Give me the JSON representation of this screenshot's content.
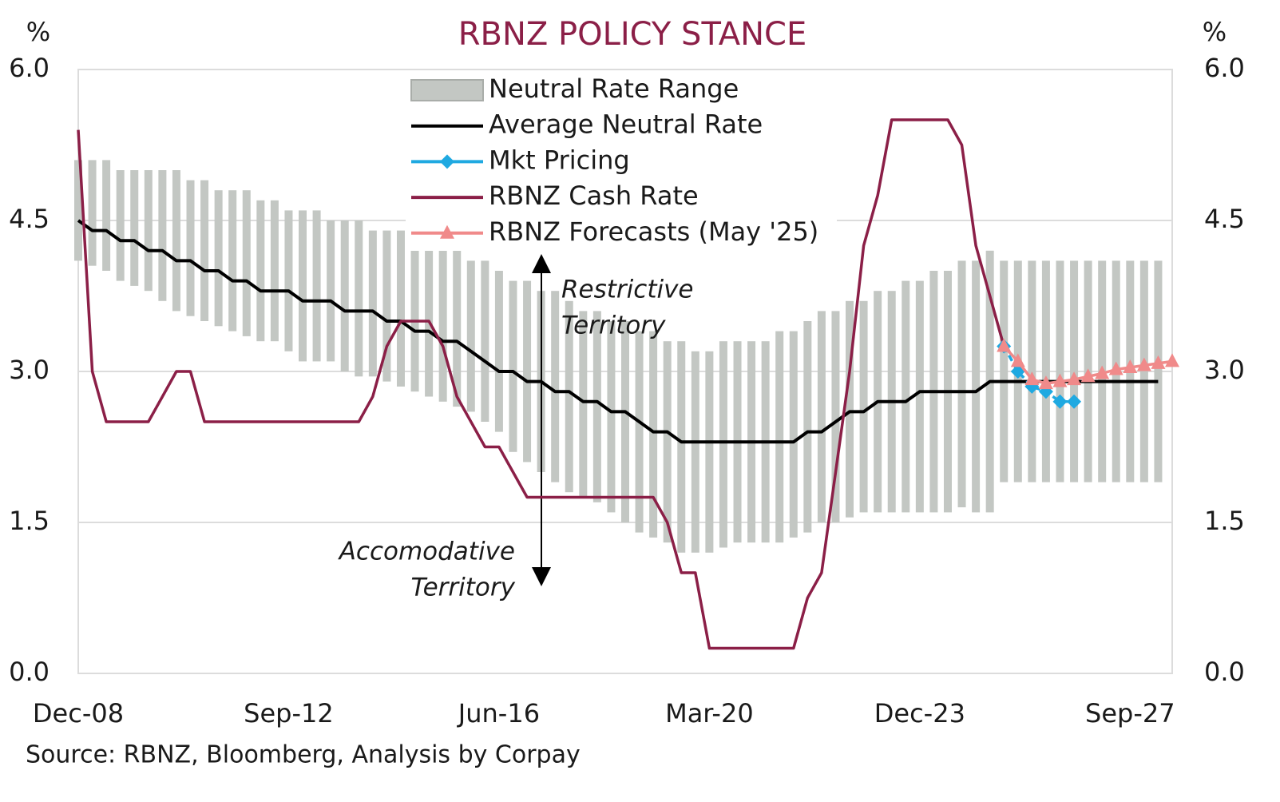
{
  "chart_data": {
    "type": "line",
    "title": "RBNZ POLICY STANCE",
    "y_label": "%",
    "y2_label": "%",
    "source": "Source: RBNZ, Bloomberg, Analysis by Corpay",
    "annotations": [
      {
        "lines": [
          "Restrictive",
          "Territory"
        ]
      },
      {
        "lines": [
          "Accomodative",
          "Territory"
        ]
      }
    ],
    "categories": [
      "Dec-08",
      null,
      null,
      null,
      null,
      null,
      null,
      null,
      null,
      null,
      null,
      null,
      null,
      null,
      null,
      "Sep-12",
      null,
      null,
      null,
      null,
      null,
      null,
      null,
      null,
      null,
      null,
      null,
      null,
      null,
      null,
      "Jun-16",
      null,
      null,
      null,
      null,
      null,
      null,
      null,
      null,
      null,
      null,
      null,
      null,
      null,
      null,
      "Mar-20",
      null,
      null,
      null,
      null,
      null,
      null,
      null,
      null,
      null,
      null,
      null,
      null,
      null,
      null,
      "Dec-23",
      null,
      null,
      null,
      null,
      null,
      null,
      null,
      null,
      null,
      null,
      null,
      null,
      null,
      null,
      "Sep-27",
      null,
      null,
      null
    ],
    "ylim": [
      0,
      6
    ],
    "yticks": [
      {
        "value": 0,
        "label": "0.0"
      },
      {
        "value": 1.5,
        "label": "1.5"
      },
      {
        "value": 3,
        "label": "3.0"
      },
      {
        "value": 4.5,
        "label": "4.5"
      },
      {
        "value": 6,
        "label": "6.0"
      }
    ],
    "y2lim": [
      0,
      6
    ],
    "y2ticks": [
      {
        "value": 0,
        "label": "0.0"
      },
      {
        "value": 1.5,
        "label": "1.5"
      },
      {
        "value": 3,
        "label": "3.0"
      },
      {
        "value": 4.5,
        "label": "4.5"
      },
      {
        "value": 6,
        "label": "6.0"
      }
    ],
    "grid": true,
    "range": {
      "name": "Neutral Rate Range",
      "color": "#c3c7c3",
      "low": [
        4.1,
        4.05,
        4.0,
        3.9,
        3.85,
        3.8,
        3.7,
        3.6,
        3.55,
        3.5,
        3.45,
        3.4,
        3.35,
        3.3,
        3.3,
        3.2,
        3.1,
        3.1,
        3.1,
        3.0,
        2.95,
        2.95,
        2.9,
        2.85,
        2.8,
        2.75,
        2.7,
        2.65,
        2.6,
        2.5,
        2.4,
        2.2,
        2.1,
        2.0,
        1.9,
        1.8,
        1.75,
        1.7,
        1.6,
        1.5,
        1.4,
        1.35,
        1.3,
        1.2,
        1.2,
        1.2,
        1.25,
        1.3,
        1.3,
        1.3,
        1.3,
        1.35,
        1.4,
        1.5,
        1.5,
        1.55,
        1.6,
        1.6,
        1.6,
        1.6,
        1.6,
        1.6,
        1.6,
        1.65,
        1.6,
        1.6,
        1.9,
        1.9,
        1.9,
        1.9,
        1.9,
        1.9,
        1.9,
        1.9,
        1.9,
        1.9,
        1.9,
        1.9,
        null
      ],
      "high": [
        5.1,
        5.1,
        5.1,
        5.0,
        5.0,
        5.0,
        5.0,
        5.0,
        4.9,
        4.9,
        4.8,
        4.8,
        4.8,
        4.7,
        4.7,
        4.6,
        4.6,
        4.6,
        4.5,
        4.5,
        4.5,
        4.4,
        4.4,
        4.4,
        4.3,
        4.3,
        4.2,
        4.2,
        4.1,
        4.1,
        4.0,
        3.9,
        3.9,
        3.8,
        3.8,
        3.7,
        3.6,
        3.6,
        3.5,
        3.5,
        3.4,
        3.4,
        3.3,
        3.3,
        3.2,
        3.2,
        3.3,
        3.3,
        3.3,
        3.3,
        3.4,
        3.4,
        3.5,
        3.6,
        3.6,
        3.7,
        3.7,
        3.8,
        3.8,
        3.9,
        3.9,
        4.0,
        4.0,
        4.1,
        4.1,
        4.2,
        4.1,
        4.1,
        4.1,
        4.1,
        4.1,
        4.1,
        4.1,
        4.1,
        4.1,
        4.1,
        4.1,
        4.1,
        null
      ]
    },
    "series": [
      {
        "name": "Average Neutral Rate",
        "color": "#000000",
        "marker": "none",
        "values": [
          4.5,
          4.4,
          4.4,
          4.3,
          4.3,
          4.2,
          4.2,
          4.1,
          4.1,
          4.0,
          4.0,
          3.9,
          3.9,
          3.8,
          3.8,
          3.8,
          3.7,
          3.7,
          3.7,
          3.6,
          3.6,
          3.6,
          3.5,
          3.5,
          3.4,
          3.4,
          3.3,
          3.3,
          3.2,
          3.1,
          3.0,
          3.0,
          2.9,
          2.9,
          2.8,
          2.8,
          2.7,
          2.7,
          2.6,
          2.6,
          2.5,
          2.4,
          2.4,
          2.3,
          2.3,
          2.3,
          2.3,
          2.3,
          2.3,
          2.3,
          2.3,
          2.3,
          2.4,
          2.4,
          2.5,
          2.6,
          2.6,
          2.7,
          2.7,
          2.7,
          2.8,
          2.8,
          2.8,
          2.8,
          2.8,
          2.9,
          2.9,
          2.9,
          2.9,
          2.9,
          2.9,
          2.9,
          2.9,
          2.9,
          2.9,
          2.9,
          2.9,
          2.9,
          null
        ]
      },
      {
        "name": "Mkt Pricing",
        "color": "#1fa9e1",
        "marker": "diamond",
        "values": [
          null,
          null,
          null,
          null,
          null,
          null,
          null,
          null,
          null,
          null,
          null,
          null,
          null,
          null,
          null,
          null,
          null,
          null,
          null,
          null,
          null,
          null,
          null,
          null,
          null,
          null,
          null,
          null,
          null,
          null,
          null,
          null,
          null,
          null,
          null,
          null,
          null,
          null,
          null,
          null,
          null,
          null,
          null,
          null,
          null,
          null,
          null,
          null,
          null,
          null,
          null,
          null,
          null,
          null,
          null,
          null,
          null,
          null,
          null,
          null,
          null,
          null,
          null,
          null,
          null,
          null,
          3.25,
          3.0,
          2.85,
          2.8,
          2.7,
          2.7,
          null,
          null,
          null,
          null,
          null,
          null,
          null
        ]
      },
      {
        "name": "RBNZ Cash Rate",
        "color": "#8b1f47",
        "marker": "none",
        "values": [
          5.4,
          3.0,
          2.5,
          2.5,
          2.5,
          2.5,
          2.75,
          3.0,
          3.0,
          2.5,
          2.5,
          2.5,
          2.5,
          2.5,
          2.5,
          2.5,
          2.5,
          2.5,
          2.5,
          2.5,
          2.5,
          2.75,
          3.25,
          3.5,
          3.5,
          3.5,
          3.25,
          2.75,
          2.5,
          2.25,
          2.25,
          2.0,
          1.75,
          1.75,
          1.75,
          1.75,
          1.75,
          1.75,
          1.75,
          1.75,
          1.75,
          1.75,
          1.5,
          1.0,
          1.0,
          0.25,
          0.25,
          0.25,
          0.25,
          0.25,
          0.25,
          0.25,
          0.75,
          1.0,
          2.0,
          3.0,
          4.25,
          4.75,
          5.5,
          5.5,
          5.5,
          5.5,
          5.5,
          5.25,
          4.25,
          3.75,
          3.25,
          null,
          null,
          null,
          null,
          null,
          null,
          null,
          null,
          null,
          null,
          null,
          null
        ]
      },
      {
        "name": "RBNZ Forecasts (May '25)",
        "color": "#f08a8a",
        "marker": "triangle",
        "values": [
          null,
          null,
          null,
          null,
          null,
          null,
          null,
          null,
          null,
          null,
          null,
          null,
          null,
          null,
          null,
          null,
          null,
          null,
          null,
          null,
          null,
          null,
          null,
          null,
          null,
          null,
          null,
          null,
          null,
          null,
          null,
          null,
          null,
          null,
          null,
          null,
          null,
          null,
          null,
          null,
          null,
          null,
          null,
          null,
          null,
          null,
          null,
          null,
          null,
          null,
          null,
          null,
          null,
          null,
          null,
          null,
          null,
          null,
          null,
          null,
          null,
          null,
          null,
          null,
          null,
          null,
          3.25,
          3.1,
          2.92,
          2.88,
          2.9,
          2.92,
          2.95,
          2.98,
          3.02,
          3.04,
          3.06,
          3.08,
          3.1
        ]
      }
    ],
    "title_color": "#8b1f47"
  }
}
